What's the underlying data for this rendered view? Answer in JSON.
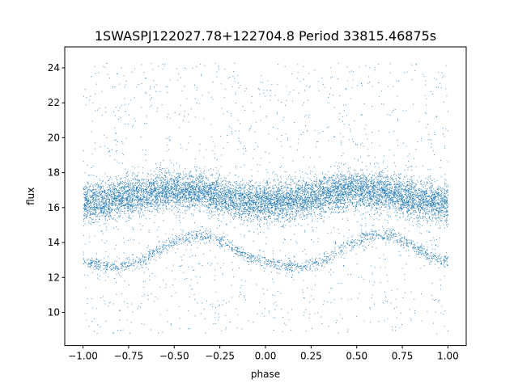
{
  "chart_data": {
    "type": "scatter",
    "title": "1SWASPJ122027.78+122704.8 Period 33815.46875s",
    "xlabel": "phase",
    "ylabel": "flux",
    "xlim": [
      -1.1,
      1.1
    ],
    "ylim": [
      8.1,
      25.2
    ],
    "x_ticks": [
      -1.0,
      -0.75,
      -0.5,
      -0.25,
      0.0,
      0.25,
      0.5,
      0.75,
      1.0
    ],
    "x_tick_labels": [
      "−1.00",
      "−0.75",
      "−0.50",
      "−0.25",
      "0.00",
      "0.25",
      "0.50",
      "0.75",
      "1.00"
    ],
    "y_ticks": [
      10,
      12,
      14,
      16,
      18,
      20,
      22,
      24
    ],
    "y_tick_labels": [
      "10",
      "12",
      "14",
      "16",
      "18",
      "20",
      "22",
      "24"
    ],
    "grid": false,
    "legend": "none",
    "marker_color": "#1f77b4",
    "description_series": [
      {
        "component": "main band",
        "x_range": [
          -1.0,
          1.0
        ],
        "y_center_min": 16.3,
        "y_center_max": 17.0,
        "y_spread": 1.0
      },
      {
        "component": "lower arc",
        "phase": [
          -1.0,
          -0.9,
          -0.8,
          -0.7,
          -0.6,
          -0.5,
          -0.4,
          -0.3,
          -0.2,
          -0.1,
          0.0,
          0.1,
          0.2,
          0.3,
          0.4,
          0.5,
          0.6,
          0.7,
          0.8,
          0.9,
          1.0
        ],
        "flux": [
          12.9,
          12.7,
          12.6,
          12.9,
          13.5,
          14.1,
          14.4,
          14.4,
          13.9,
          13.2,
          12.9,
          12.7,
          12.6,
          12.9,
          13.5,
          14.1,
          14.4,
          14.4,
          13.9,
          13.2,
          12.9
        ]
      },
      {
        "component": "scatter outliers",
        "y_range": [
          8.8,
          24.3
        ]
      }
    ]
  }
}
